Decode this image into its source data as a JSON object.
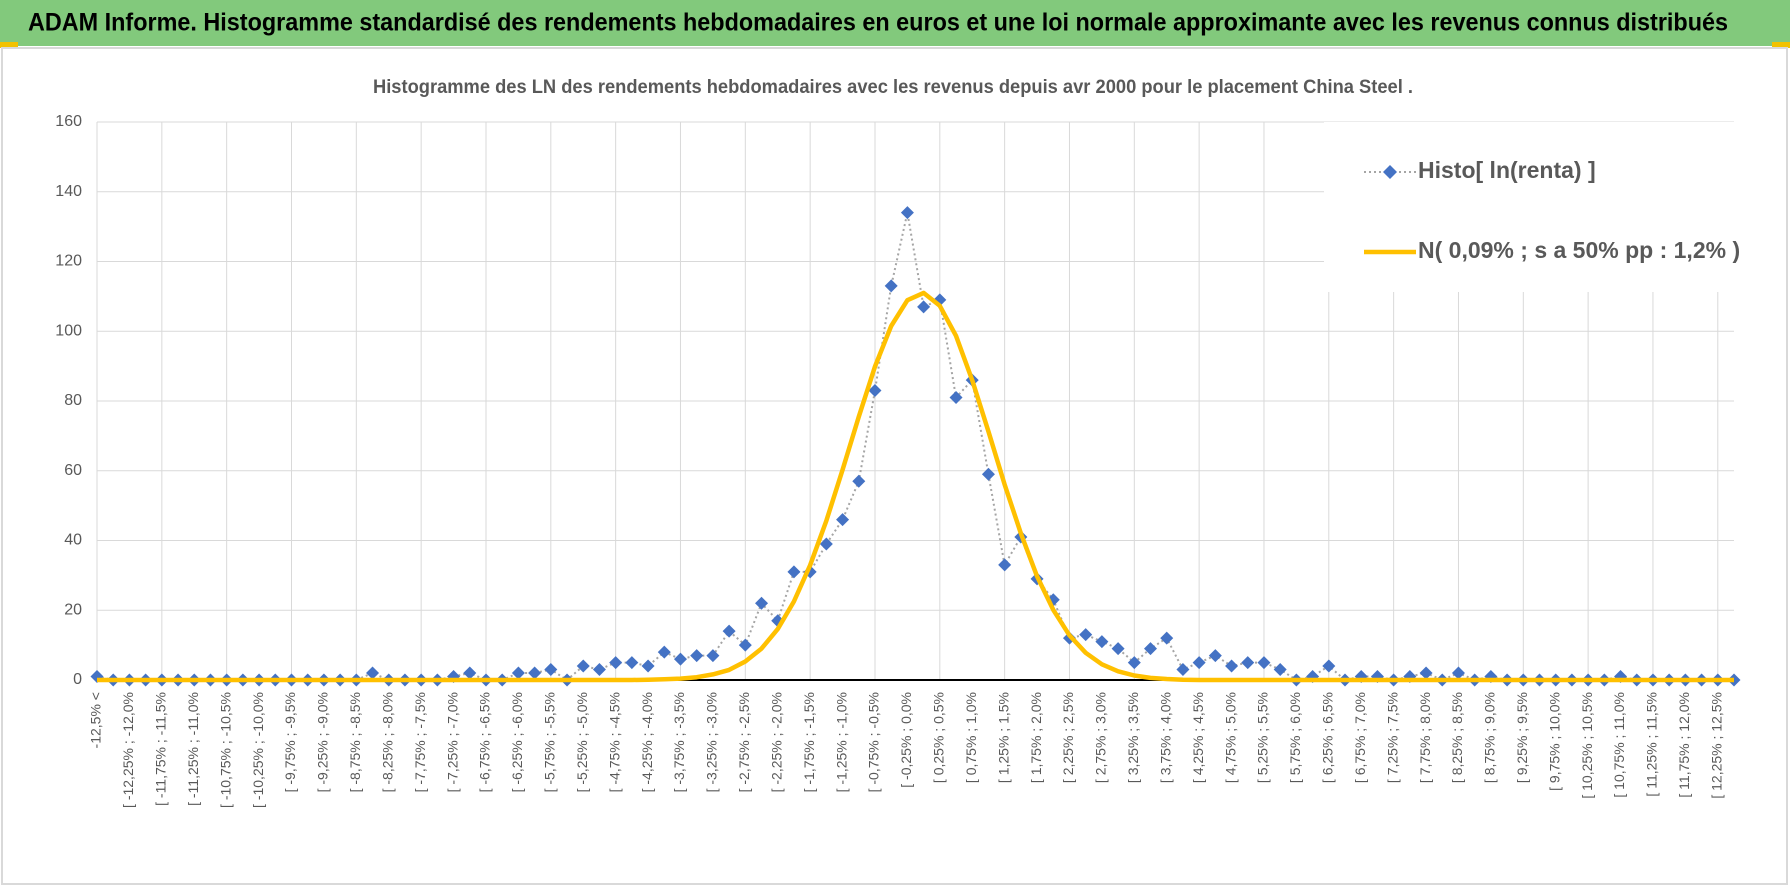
{
  "title": "ADAM Informe. Histogramme standardisé des rendements hebdomadaires en euros et une loi normale approximante avec les revenus connus distribués",
  "chart_data": {
    "type": "line",
    "title": "Histogramme des LN des rendements hebdomadaires avec les revenus depuis avr 2000 pour le placement China Steel .",
    "categories": [
      "-12,5% <",
      null,
      "[ -12,25% ; -12,0%",
      null,
      "[ -11,75% ; -11,5%",
      null,
      "[ -11,25% ; -11,0%",
      null,
      "[ -10,75% ; -10,5%",
      null,
      "[ -10,25% ; -10,0%",
      null,
      "[ -9,75% ; -9,5%",
      null,
      "[ -9,25% ; -9,0%",
      null,
      "[ -8,75% ; -8,5%",
      null,
      "[ -8,25% ; -8,0%",
      null,
      "[ -7,75% ; -7,5%",
      null,
      "[ -7,25% ; -7,0%",
      null,
      "[ -6,75% ; -6,5%",
      null,
      "[ -6,25% ; -6,0%",
      null,
      "[ -5,75% ; -5,5%",
      null,
      "[ -5,25% ; -5,0%",
      null,
      "[ -4,75% ; -4,5%",
      null,
      "[ -4,25% ; -4,0%",
      null,
      "[ -3,75% ; -3,5%",
      null,
      "[ -3,25% ; -3,0%",
      null,
      "[ -2,75% ; -2,5%",
      null,
      "[ -2,25% ; -2,0%",
      null,
      "[ -1,75% ; -1,5%",
      null,
      "[ -1,25% ; -1,0%",
      null,
      "[ -0,75% ; -0,5%",
      null,
      "[ -0,25% ; 0,0%",
      null,
      "[ 0,25% ; 0,5%",
      null,
      "[ 0,75% ; 1,0%",
      null,
      "[ 1,25% ; 1,5%",
      null,
      "[ 1,75% ; 2,0%",
      null,
      "[ 2,25% ; 2,5%",
      null,
      "[ 2,75% ; 3,0%",
      null,
      "[ 3,25% ; 3,5%",
      null,
      "[ 3,75% ; 4,0%",
      null,
      "[ 4,25% ; 4,5%",
      null,
      "[ 4,75% ; 5,0%",
      null,
      "[ 5,25% ; 5,5%",
      null,
      "[ 5,75% ; 6,0%",
      null,
      "[ 6,25% ; 6,5%",
      null,
      "[ 6,75% ; 7,0%",
      null,
      "[ 7,25% ; 7,5%",
      null,
      "[ 7,75% ; 8,0%",
      null,
      "[ 8,25% ; 8,5%",
      null,
      "[ 8,75% ; 9,0%",
      null,
      "[ 9,25% ; 9,5%",
      null,
      "[ 9,75% ; 10,0%",
      null,
      "[ 10,25% ; 10,5%",
      null,
      "[ 10,75% ; 11,0%",
      null,
      "[ 11,25% ; 11,5%",
      null,
      "[ 11,75% ; 12,0%",
      null,
      "[ 12,25% ; 12,5%",
      null
    ],
    "series": [
      {
        "name": "Histo[ ln(renta) ]",
        "color": "#4472c4",
        "line_color": "#a5a5a5",
        "marker": "diamond",
        "values": [
          1,
          0,
          0,
          0,
          0,
          0,
          0,
          0,
          0,
          0,
          0,
          0,
          0,
          0,
          0,
          0,
          0,
          2,
          0,
          0,
          0,
          0,
          1,
          2,
          0,
          0,
          2,
          2,
          3,
          0,
          4,
          3,
          5,
          5,
          4,
          8,
          6,
          7,
          7,
          14,
          10,
          22,
          17,
          31,
          31,
          39,
          46,
          57,
          83,
          113,
          134,
          107,
          109,
          81,
          86,
          59,
          33,
          41,
          29,
          23,
          12,
          13,
          11,
          9,
          5,
          9,
          12,
          3,
          5,
          7,
          4,
          5,
          5,
          3,
          0,
          1,
          4,
          0,
          1,
          1,
          0,
          1,
          2,
          0,
          2,
          0,
          1,
          0,
          0,
          0,
          0,
          0,
          0,
          0,
          1,
          0,
          0,
          0,
          0,
          0,
          0,
          0
        ]
      },
      {
        "name": "N( 0,09% ; s a 50% pp : 1,2% )",
        "color": "#ffc000",
        "values": [
          0,
          0,
          0,
          0,
          0,
          0,
          0,
          0,
          0,
          0,
          0,
          0,
          0,
          0,
          0,
          0,
          0,
          0,
          0,
          0,
          0,
          0,
          0,
          0,
          0,
          0,
          0,
          0,
          0,
          0,
          0,
          0,
          0,
          0,
          0.1,
          0.2,
          0.4,
          0.8,
          1.6,
          2.9,
          5.3,
          9.0,
          14.6,
          22.5,
          32.9,
          45.7,
          60.3,
          75.5,
          89.9,
          101.5,
          108.9,
          111,
          107.3,
          98.7,
          86.0,
          71.3,
          56.1,
          42.0,
          29.7,
          20.1,
          12.8,
          7.8,
          4.5,
          2.5,
          1.3,
          0.6,
          0.3,
          0.1,
          0,
          0,
          0,
          0,
          0,
          0,
          0,
          0,
          0,
          0,
          0,
          0,
          0,
          0,
          0,
          0,
          0,
          0,
          0,
          0,
          0,
          0,
          0,
          0,
          0,
          0,
          0,
          0,
          0,
          0,
          0,
          0,
          0,
          0
        ]
      }
    ],
    "ylim": [
      0,
      160
    ],
    "yticks": [
      0,
      20,
      40,
      60,
      80,
      100,
      120,
      140,
      160
    ],
    "grid": true,
    "legend": "top-right"
  }
}
